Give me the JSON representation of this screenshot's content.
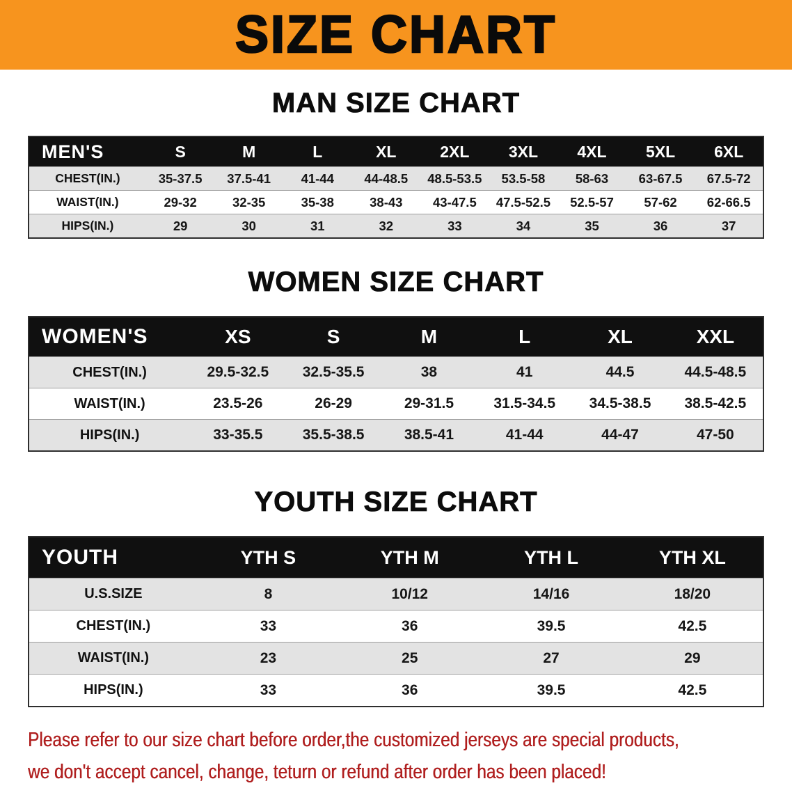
{
  "banner": {
    "title": "SIZE CHART"
  },
  "sections": [
    {
      "heading": "MAN SIZE CHART",
      "table": {
        "header": [
          "MEN'S",
          "S",
          "M",
          "L",
          "XL",
          "2XL",
          "3XL",
          "4XL",
          "5XL",
          "6XL"
        ],
        "rows": [
          [
            "CHEST(IN.)",
            "35-37.5",
            "37.5-41",
            "41-44",
            "44-48.5",
            "48.5-53.5",
            "53.5-58",
            "58-63",
            "63-67.5",
            "67.5-72"
          ],
          [
            "WAIST(IN.)",
            "29-32",
            "32-35",
            "35-38",
            "38-43",
            "43-47.5",
            "47.5-52.5",
            "52.5-57",
            "57-62",
            "62-66.5"
          ],
          [
            "HIPS(IN.)",
            "29",
            "30",
            "31",
            "32",
            "33",
            "34",
            "35",
            "36",
            "37"
          ]
        ]
      }
    },
    {
      "heading": "WOMEN SIZE CHART",
      "table": {
        "header": [
          "WOMEN'S",
          "XS",
          "S",
          "M",
          "L",
          "XL",
          "XXL"
        ],
        "rows": [
          [
            "CHEST(IN.)",
            "29.5-32.5",
            "32.5-35.5",
            "38",
            "41",
            "44.5",
            "44.5-48.5"
          ],
          [
            "WAIST(IN.)",
            "23.5-26",
            "26-29",
            "29-31.5",
            "31.5-34.5",
            "34.5-38.5",
            "38.5-42.5"
          ],
          [
            "HIPS(IN.)",
            "33-35.5",
            "35.5-38.5",
            "38.5-41",
            "41-44",
            "44-47",
            "47-50"
          ]
        ]
      }
    },
    {
      "heading": "YOUTH SIZE CHART",
      "table": {
        "header": [
          "YOUTH",
          "YTH S",
          "YTH M",
          "YTH L",
          "YTH XL"
        ],
        "rows": [
          [
            "U.S.SIZE",
            "8",
            "10/12",
            "14/16",
            "18/20"
          ],
          [
            "CHEST(IN.)",
            "33",
            "36",
            "39.5",
            "42.5"
          ],
          [
            "WAIST(IN.)",
            "23",
            "25",
            "27",
            "29"
          ],
          [
            "HIPS(IN.)",
            "33",
            "36",
            "39.5",
            "42.5"
          ]
        ]
      }
    }
  ],
  "footer": {
    "line1": "Please refer to our size chart before order,the customized jerseys are special products,",
    "line2": "we don't accept cancel, change, teturn or refund after order has been placed!"
  },
  "colors": {
    "banner_bg": "#F7941E",
    "header_bg": "#101010",
    "stripe": "#e3e3e3",
    "notice_color": "#B01F1F"
  }
}
